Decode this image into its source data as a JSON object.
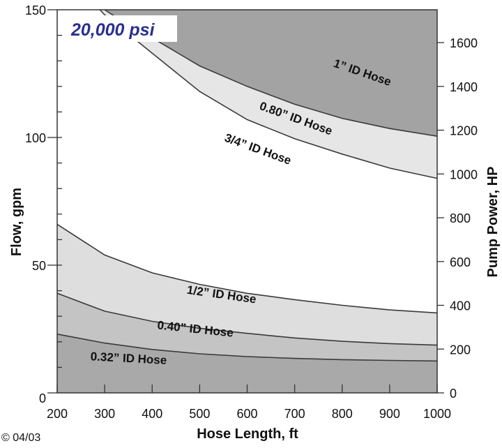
{
  "chart_data": {
    "type": "area",
    "title": "",
    "pressure_label": "20,000 psi",
    "xlabel": "Hose Length, ft",
    "ylabel": "Flow, gpm",
    "y2label": "Pump Power, HP",
    "xlim": [
      200,
      1000
    ],
    "ylim": [
      0,
      150
    ],
    "y2lim": [
      0,
      1750
    ],
    "x_ticks": [
      200,
      300,
      400,
      500,
      600,
      700,
      800,
      900,
      1000
    ],
    "y_ticks": [
      0,
      50,
      100,
      150
    ],
    "y2_ticks": [
      0,
      200,
      400,
      600,
      800,
      1000,
      1200,
      1400,
      1600
    ],
    "grid": false,
    "x": [
      200,
      300,
      400,
      500,
      600,
      700,
      800,
      900,
      1000
    ],
    "series": [
      {
        "name": "0.32\" ID Hose",
        "values": [
          23,
          19.5,
          17,
          15.3,
          14.2,
          13.5,
          13,
          12.7,
          12.5
        ],
        "color": "#a9a9a9"
      },
      {
        "name": "0.40\" ID Hose",
        "values": [
          39,
          32,
          28,
          25.3,
          23.3,
          21.5,
          20.2,
          19.3,
          18.7
        ],
        "color": "#c4c4c4"
      },
      {
        "name": "1/2\" ID Hose",
        "values": [
          66,
          54,
          47,
          42.5,
          39,
          36.5,
          34.3,
          32.5,
          31.3
        ],
        "color": "#dedede"
      },
      {
        "name": "3/4\" ID Hose",
        "values": [
          null,
          null,
          133,
          118,
          107,
          99.5,
          93.5,
          88,
          84
        ],
        "color": "#ffffff"
      },
      {
        "name": "0.80\" ID Hose",
        "values": [
          null,
          150,
          137,
          125,
          115,
          107,
          100.5,
          95,
          90.5
        ],
        "color": "#e6e6e6"
      },
      {
        "name": "1\" ID Hose",
        "values": [
          null,
          null,
          null,
          null,
          null,
          null,
          null,
          null,
          null
        ],
        "color": "#a3a3a3"
      }
    ],
    "boundaries": {
      "line_1_inch": {
        "x": [
          300,
          350,
          400,
          500,
          600,
          700,
          800,
          900,
          1000
        ],
        "y": [
          150,
          144,
          139,
          128,
          120,
          113,
          107.5,
          103.5,
          100.5
        ]
      },
      "line_080": {
        "x": [
          290,
          300,
          400,
          500,
          600,
          700,
          800,
          900,
          1000
        ],
        "y": [
          150,
          148,
          133,
          118,
          107,
          99.5,
          93.5,
          88,
          84
        ]
      }
    },
    "annotations": [
      {
        "text": "1” ID Hose",
        "x": 840,
        "y": 124
      },
      {
        "text": "0.80” ID Hose",
        "x": 700,
        "y": 106
      },
      {
        "text": "3/4” ID Hose",
        "x": 620,
        "y": 94
      },
      {
        "text": "1/2” ID Hose",
        "x": 545,
        "y": 37
      },
      {
        "text": "0.40” ID Hose",
        "x": 490,
        "y": 23.5
      },
      {
        "text": "0.32” ID Hose",
        "x": 350,
        "y": 12
      }
    ]
  },
  "footer": {
    "copyright": "© 04/03"
  }
}
